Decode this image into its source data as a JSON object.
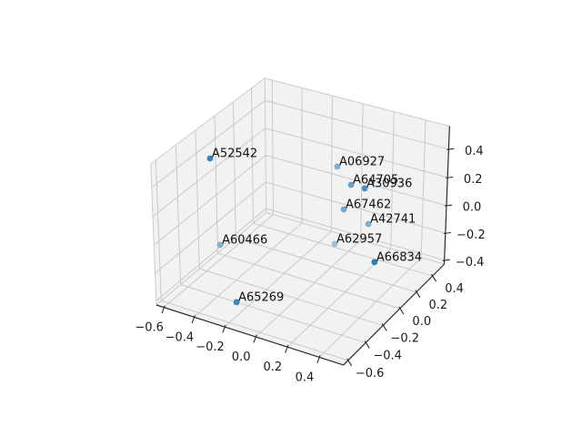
{
  "figure": {
    "background": "#ffffff"
  },
  "chart_data": {
    "type": "scatter",
    "projection": "3d",
    "title": "",
    "xlabel": "",
    "ylabel": "",
    "zlabel": "",
    "view": {
      "elev": 30,
      "azim": -60
    },
    "legend": null,
    "grid": true,
    "marker_color": "#1f77b4",
    "axes": {
      "x": {
        "ticks": [
          -0.6,
          -0.4,
          -0.2,
          0.0,
          0.2,
          0.4
        ],
        "lim": [
          -0.65,
          0.55
        ]
      },
      "y": {
        "ticks": [
          -0.6,
          -0.4,
          -0.2,
          0.0,
          0.2,
          0.4
        ],
        "lim": [
          -0.65,
          0.55
        ]
      },
      "z": {
        "ticks": [
          -0.4,
          -0.2,
          0.0,
          0.2,
          0.4
        ],
        "lim": [
          -0.43,
          0.56
        ]
      }
    },
    "points": [
      {
        "label": "A52542",
        "x": -0.586,
        "y": -0.158,
        "z": 0.362,
        "shade": 0.9
      },
      {
        "label": "A06927",
        "x": 0.078,
        "y": 0.115,
        "z": 0.362,
        "shade": 0.55
      },
      {
        "label": "A64705",
        "x": 0.206,
        "y": 0.042,
        "z": 0.313,
        "shade": 0.65
      },
      {
        "label": "A30936",
        "x": 0.268,
        "y": 0.087,
        "z": 0.283,
        "shade": 0.8
      },
      {
        "label": "A67462",
        "x": 0.205,
        "y": -0.037,
        "z": 0.184,
        "shade": 0.6
      },
      {
        "label": "A42741",
        "x": 0.37,
        "y": -0.055,
        "z": 0.144,
        "shade": 0.55
      },
      {
        "label": "A62957",
        "x": 0.109,
        "y": 0.036,
        "z": -0.133,
        "shade": 0.4
      },
      {
        "label": "A66834",
        "x": 0.48,
        "y": -0.183,
        "z": -0.014,
        "shade": 0.95
      },
      {
        "label": "A60466",
        "x": -0.322,
        "y": -0.486,
        "z": 0.016,
        "shade": 0.5
      },
      {
        "label": "A65269",
        "x": -0.163,
        "y": -0.581,
        "z": -0.282,
        "shade": 0.85
      }
    ],
    "colors": {
      "pane": "#f2f2f2",
      "grid": "#c9c9c9",
      "pane_edge": "#cccccc",
      "axis_line": "#2b2b2b",
      "tick_label": "#1a1a1a",
      "point_label": "#111111"
    }
  }
}
